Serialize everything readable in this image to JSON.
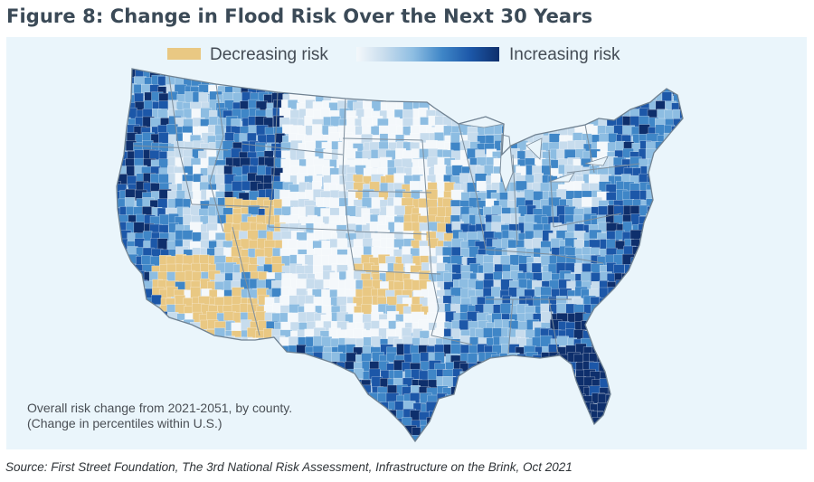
{
  "figure": {
    "title": "Figure 8: Change in Flood Risk Over the Next 30 Years"
  },
  "legend": {
    "decreasing_label": "Decreasing risk",
    "increasing_label": "Increasing risk",
    "decreasing_color": "#e9c883",
    "increasing_ramp": [
      "#f4f8fb",
      "#c7dced",
      "#8dbde2",
      "#3f86c7",
      "#1c57a8",
      "#0e2f6c"
    ]
  },
  "map": {
    "subject": "Contiguous United States, by county",
    "background_color": "#eaf5fb",
    "boundary_color": "#8a9aa8",
    "note_lines": [
      "Overall risk change from 2021-2051, by county.",
      "(Change in percentiles within U.S.)"
    ]
  },
  "source": "Source: First Street Foundation, The 3rd National Risk Assessment, Infrastructure on the Brink, Oct 2021"
}
